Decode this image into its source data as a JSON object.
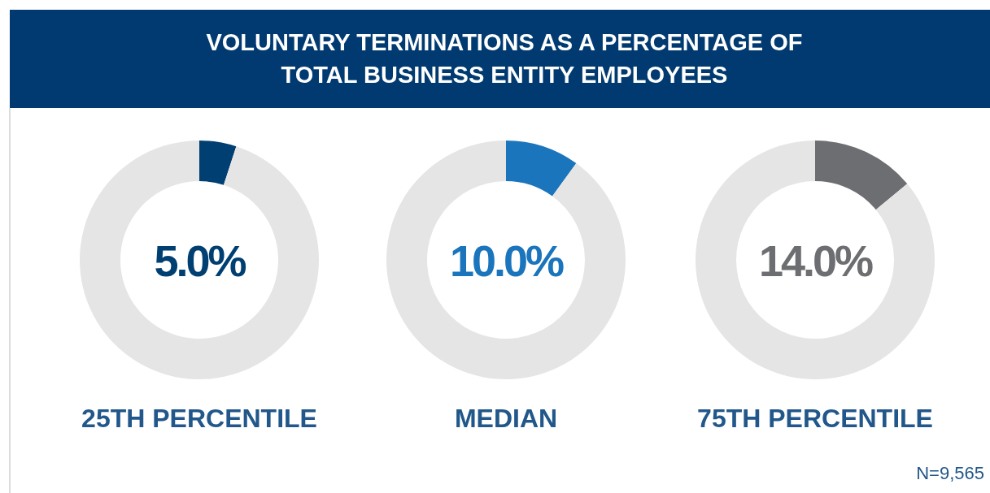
{
  "chart_data": [
    {
      "type": "other",
      "title": "VOLUNTARY TERMINATIONS AS A PERCENTAGE OF\nTOTAL BUSINESS ENTITY EMPLOYEES",
      "annotations": [
        "N=9,565"
      ]
    },
    {
      "type": "donut",
      "title": "25TH PERCENTILE",
      "categories": [
        null,
        null
      ],
      "values": [
        5.0,
        95.0
      ],
      "colors": [
        "#003f72",
        "#e5e5e5"
      ],
      "annotations": [
        "5.0%"
      ]
    },
    {
      "type": "donut",
      "title": "MEDIAN",
      "categories": [
        null,
        null
      ],
      "values": [
        10.0,
        90.0
      ],
      "colors": [
        "#1b75bc",
        "#e5e5e5"
      ],
      "annotations": [
        "10.0%"
      ]
    },
    {
      "type": "donut",
      "title": "75TH PERCENTILE",
      "categories": [
        null,
        null
      ],
      "values": [
        14.0,
        86.0
      ],
      "colors": [
        "#6d6e71",
        "#e5e5e5"
      ],
      "annotations": [
        "14.0%"
      ]
    }
  ]
}
